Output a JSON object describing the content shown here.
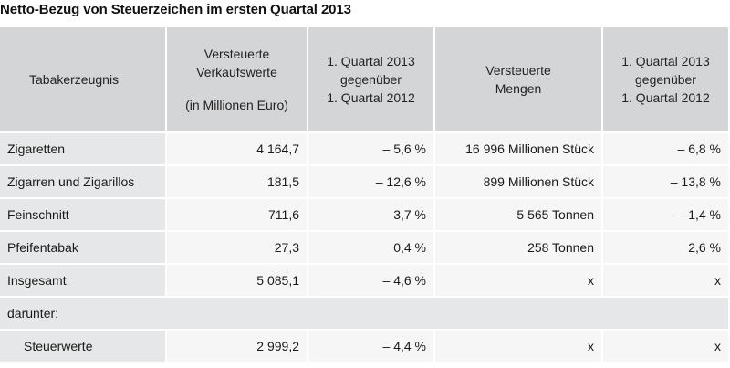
{
  "title": "Netto-Bezug von Steuerzeichen im ersten Quartal 2013",
  "header": {
    "col1": "Tabakerzeugnis",
    "col2_line1": "Versteuerte",
    "col2_line2": "Verkaufswerte",
    "col2_line3": "(in Millionen Euro)",
    "col3_line1": "1. Quartal 2013",
    "col3_line2": "gegenüber",
    "col3_line3": "1. Quartal 2012",
    "col4_line1": "Versteuerte",
    "col4_line2": "Mengen",
    "col5_line1": "1. Quartal 2013",
    "col5_line2": "gegenüber",
    "col5_line3": "1. Quartal 2012"
  },
  "rows": [
    {
      "product": "Zigaretten",
      "value": "4 164,7",
      "change_value": "– 5,6 %",
      "quantity": "16 996 Millionen Stück",
      "change_quantity": "– 6,8 %"
    },
    {
      "product": "Zigarren und Zigarillos",
      "value": "181,5",
      "change_value": "– 12,6 %",
      "quantity": "899 Millionen Stück",
      "change_quantity": "– 13,8 %"
    },
    {
      "product": "Feinschnitt",
      "value": "711,6",
      "change_value": "3,7 %",
      "quantity": "5 565 Tonnen",
      "change_quantity": "– 1,4 %"
    },
    {
      "product": "Pfeifentabak",
      "value": "27,3",
      "change_value": "0,4 %",
      "quantity": "258 Tonnen",
      "change_quantity": "2,6 %"
    },
    {
      "product": "Insgesamt",
      "value": "5 085,1",
      "change_value": "– 4,6 %",
      "quantity": "x",
      "change_quantity": "x"
    }
  ],
  "subheading": "darunter:",
  "subrow": {
    "product": "Steuerwerte",
    "value": "2 999,2",
    "change_value": "– 4,4 %",
    "quantity": "x",
    "change_quantity": "x"
  }
}
